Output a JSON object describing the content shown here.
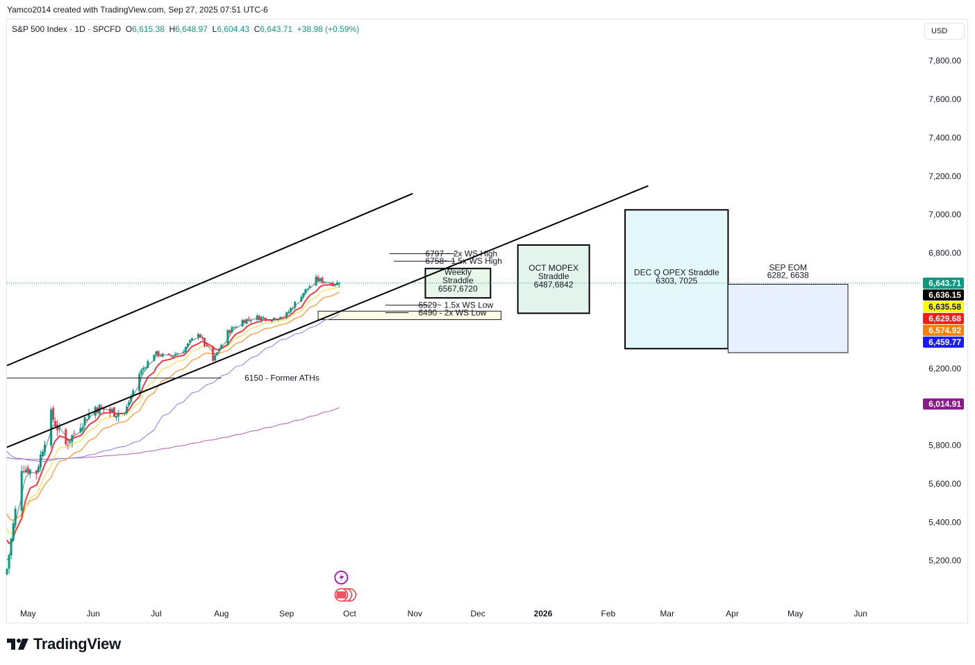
{
  "caption": "Yamco2014 created with TradingView.com, Sep 27, 2025 07:51 UTC-6",
  "legend": {
    "symbol": "S&P 500 Index · 1D · SPCFD",
    "o_label": "O",
    "o_value": "6,615.38",
    "h_label": "H",
    "h_value": "6,648.97",
    "l_label": "L",
    "l_value": "6,604.43",
    "c_label": "C",
    "c_value": "6,643.71",
    "change": "+38.98 (+0.59%)"
  },
  "currency": "USD",
  "brand": "TradingView",
  "colors": {
    "up": "#089981",
    "down": "#f23645",
    "ema_red": "#f23645",
    "ema_orange": "#f7a352",
    "ema_yellow": "#f5e04a",
    "sma_blue": "#7b7fe0",
    "sma_purple": "#b45aa8"
  },
  "chart_data": {
    "type": "candlestick",
    "title": "S&P 500 Index · 1D · SPCFD",
    "y_range": [
      5040,
      7900
    ],
    "x_range": [
      "2025-04-21",
      "2026-06-30"
    ],
    "y_ticks": [
      {
        "value": 7800,
        "label": "7,800.00"
      },
      {
        "value": 7600,
        "label": "7,600.00"
      },
      {
        "value": 7400,
        "label": "7,400.00"
      },
      {
        "value": 7200,
        "label": "7,200.00"
      },
      {
        "value": 7000,
        "label": "7,000.00"
      },
      {
        "value": 6800,
        "label": "6,800.00"
      },
      {
        "value": 6200,
        "label": "6,200.00"
      },
      {
        "value": 5800,
        "label": "5,800.00"
      },
      {
        "value": 5600,
        "label": "5,600.00"
      },
      {
        "value": 5400,
        "label": "5,400.00"
      },
      {
        "value": 5200,
        "label": "5,200.00"
      }
    ],
    "x_ticks": [
      {
        "date": "2025-05-01",
        "label": "May",
        "bold": false
      },
      {
        "date": "2025-06-01",
        "label": "Jun",
        "bold": false
      },
      {
        "date": "2025-07-01",
        "label": "Jul",
        "bold": false
      },
      {
        "date": "2025-08-01",
        "label": "Aug",
        "bold": false
      },
      {
        "date": "2025-09-01",
        "label": "Sep",
        "bold": false
      },
      {
        "date": "2025-10-01",
        "label": "Oct",
        "bold": false
      },
      {
        "date": "2025-11-01",
        "label": "Nov",
        "bold": false
      },
      {
        "date": "2025-12-01",
        "label": "Dec",
        "bold": false
      },
      {
        "date": "2026-01-01",
        "label": "2026",
        "bold": true
      },
      {
        "date": "2026-02-01",
        "label": "Feb",
        "bold": false
      },
      {
        "date": "2026-03-01",
        "label": "Mar",
        "bold": false
      },
      {
        "date": "2026-04-01",
        "label": "Apr",
        "bold": false
      },
      {
        "date": "2026-05-01",
        "label": "May",
        "bold": false
      },
      {
        "date": "2026-06-01",
        "label": "Jun",
        "bold": false
      }
    ],
    "price_tags": [
      {
        "value": 6643.71,
        "label": "6,643.71",
        "bg": "#089981",
        "fg": "#ffffff"
      },
      {
        "value": 6636.15,
        "label": "6,636.15",
        "bg": "#000000",
        "fg": "#ffffff"
      },
      {
        "value": 6635.58,
        "label": "6,635.58",
        "bg": "#ffff00",
        "fg": "#131722"
      },
      {
        "value": 6629.68,
        "label": "6,629.68",
        "bg": "#ff1a1a",
        "fg": "#ffffff"
      },
      {
        "value": 6574.92,
        "label": "6,574.92",
        "bg": "#ff7f00",
        "fg": "#ffffff"
      },
      {
        "value": 6459.77,
        "label": "6,459.77",
        "bg": "#1a1aff",
        "fg": "#ffffff"
      },
      {
        "value": 6014.91,
        "label": "6,014.91",
        "bg": "#8b1a8b",
        "fg": "#ffffff"
      }
    ],
    "last_price": 6643.71,
    "closes": [
      {
        "date": "2025-04-21",
        "close": 5158
      },
      {
        "date": "2025-04-28",
        "close": 5686
      },
      {
        "date": "2025-05-05",
        "close": 5660
      },
      {
        "date": "2025-05-12",
        "close": 5958
      },
      {
        "date": "2025-05-19",
        "close": 5802
      },
      {
        "date": "2025-05-26",
        "close": 5911
      },
      {
        "date": "2025-06-02",
        "close": 6000
      },
      {
        "date": "2025-06-09",
        "close": 5977
      },
      {
        "date": "2025-06-16",
        "close": 5967
      },
      {
        "date": "2025-06-23",
        "close": 6173
      },
      {
        "date": "2025-06-30",
        "close": 6279
      },
      {
        "date": "2025-07-07",
        "close": 6259
      },
      {
        "date": "2025-07-14",
        "close": 6297
      },
      {
        "date": "2025-07-21",
        "close": 6389
      },
      {
        "date": "2025-07-28",
        "close": 6238
      },
      {
        "date": "2025-08-04",
        "close": 6389
      },
      {
        "date": "2025-08-11",
        "close": 6449
      },
      {
        "date": "2025-08-18",
        "close": 6466
      },
      {
        "date": "2025-08-25",
        "close": 6460
      },
      {
        "date": "2025-09-01",
        "close": 6481
      },
      {
        "date": "2025-09-08",
        "close": 6584
      },
      {
        "date": "2025-09-15",
        "close": 6664
      },
      {
        "date": "2025-09-22",
        "close": 6643
      }
    ],
    "trend_lines": [
      {
        "name": "upper channel",
        "from": [
          "2025-04-21",
          6215
        ],
        "to": [
          "2025-10-31",
          7110
        ]
      },
      {
        "name": "lower channel",
        "from": [
          "2025-04-21",
          5790
        ],
        "to": [
          "2026-02-20",
          7150
        ]
      }
    ],
    "levels": [
      {
        "value": 6150,
        "label": "6150 - Former ATHs",
        "from": "2025-04-21",
        "to": "2025-08-01"
      },
      {
        "value": 6797,
        "label": "6797 ~ 2x WS High",
        "from": "2025-10-20",
        "to": "2025-11-20"
      },
      {
        "value": 6758,
        "label": "6758~ 1.5x WS High",
        "from": "2025-10-22",
        "to": "2025-11-20"
      },
      {
        "value": 6529,
        "label": "6529~ 1.5x WS Low",
        "from": "2025-10-18",
        "to": "2025-11-08"
      },
      {
        "value": 6490,
        "label": "6490 - 2x WS Low",
        "from": "2025-10-18",
        "to": "2025-10-29"
      }
    ],
    "boxes": [
      {
        "lines": [
          "Weekly",
          "Straddle",
          "6567,6720"
        ],
        "from": "2025-11-06",
        "to": "2025-12-07",
        "low": 6567,
        "high": 6720,
        "fill": "#e8f5e9",
        "border": "#000000",
        "border_w": 2
      },
      {
        "lines": [
          "OCT MOPEX",
          "Straddle",
          "6487,6842"
        ],
        "from": "2025-12-20",
        "to": "2026-01-23",
        "low": 6487,
        "high": 6842,
        "fill": "#e3f4ec",
        "border": "#000000",
        "border_w": 2
      },
      {
        "lines": [
          "DEC Q OPEX Straddle",
          "6303, 7025"
        ],
        "from": "2026-02-09",
        "to": "2026-03-30",
        "low": 6303,
        "high": 7025,
        "fill": "#e4f7fb",
        "border": "#000000",
        "border_w": 2
      },
      {
        "lines": [
          "SEP EOM",
          "6282, 6638"
        ],
        "from": "2026-03-30",
        "to": "2026-05-26",
        "low": 6282,
        "high": 6638,
        "fill": "#e8efff",
        "border": "#131722",
        "border_w": 1
      },
      {
        "lines": [],
        "from": "2025-09-16",
        "to": "2025-12-12",
        "low": 6454,
        "high": 6498,
        "fill": "#fffbe6",
        "border": "#131722",
        "border_w": 1
      }
    ]
  }
}
